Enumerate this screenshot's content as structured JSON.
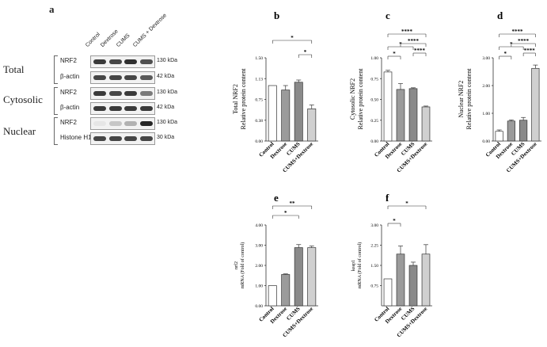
{
  "panel_letters": [
    "a",
    "b",
    "c",
    "d",
    "e",
    "f"
  ],
  "blot": {
    "lanes": [
      "Control",
      "Dextrose",
      "CUMS",
      "CUMS + Dextrose"
    ],
    "sections": [
      {
        "label": "Total",
        "rows": [
          {
            "name": "NRF2",
            "kda": "130 kDa",
            "intensity": [
              0.85,
              0.8,
              0.9,
              0.75
            ]
          },
          {
            "name": "β-actin",
            "kda": "42 kDa",
            "intensity": [
              0.8,
              0.8,
              0.8,
              0.7
            ]
          }
        ]
      },
      {
        "label": "Cytosolic",
        "rows": [
          {
            "name": "NRF2",
            "kda": "130 kDa",
            "intensity": [
              0.85,
              0.8,
              0.85,
              0.55
            ]
          },
          {
            "name": "β-actin",
            "kda": "42 kDa",
            "intensity": [
              0.85,
              0.85,
              0.85,
              0.85
            ]
          }
        ]
      },
      {
        "label": "Nuclear",
        "rows": [
          {
            "name": "NRF2",
            "kda": "130 kDa",
            "intensity": [
              0.05,
              0.2,
              0.3,
              0.95
            ]
          },
          {
            "name": "Histone H1",
            "kda": "30 kDa",
            "intensity": [
              0.8,
              0.8,
              0.8,
              0.8
            ]
          }
        ]
      }
    ]
  },
  "chart_data": [
    {
      "id": "b",
      "type": "bar",
      "ylabel": "Total NRF2\nRelative protein content",
      "categories": [
        "Control",
        "Dextrose",
        "CUMS",
        "CUMS+Dextrose"
      ],
      "values": [
        1.0,
        0.92,
        1.06,
        0.58
      ],
      "errors": [
        0.0,
        0.08,
        0.04,
        0.07
      ],
      "ylim": [
        0,
        1.5
      ],
      "ticks": [
        "0.00",
        "0.38",
        "0.75",
        "1.13",
        "1.50"
      ],
      "colors": [
        "#ffffff",
        "#9b9b9b",
        "#8a8a8a",
        "#d0d0d0"
      ],
      "sig": [
        {
          "from": 0,
          "to": 3,
          "label": "*"
        },
        {
          "from": 2,
          "to": 3,
          "label": "*"
        }
      ]
    },
    {
      "id": "c",
      "type": "bar",
      "ylabel": "Cytosolic NRF2\nRelative protein content",
      "categories": [
        "Control",
        "Dextrose",
        "CUMS",
        "CUMS+Dextrose"
      ],
      "values": [
        0.83,
        0.62,
        0.63,
        0.41
      ],
      "errors": [
        0.02,
        0.07,
        0.01,
        0.01
      ],
      "ylim": [
        0,
        1.0
      ],
      "ticks": [
        "0.00",
        "0.25",
        "0.50",
        "0.75",
        "1.00"
      ],
      "colors": [
        "#ffffff",
        "#9b9b9b",
        "#8a8a8a",
        "#d0d0d0"
      ],
      "sig": [
        {
          "from": 0,
          "to": 1,
          "label": "*"
        },
        {
          "from": 0,
          "to": 2,
          "label": "*"
        },
        {
          "from": 2,
          "to": 3,
          "label": "****"
        },
        {
          "from": 1,
          "to": 3,
          "label": "****"
        },
        {
          "from": 0,
          "to": 3,
          "label": "****"
        }
      ]
    },
    {
      "id": "d",
      "type": "bar",
      "ylabel": "Nuclear NRF2\nRelative protein content",
      "categories": [
        "Control",
        "Dextrose",
        "CUMS",
        "CUMS+Dextrose"
      ],
      "values": [
        0.35,
        0.72,
        0.75,
        2.62
      ],
      "errors": [
        0.05,
        0.04,
        0.1,
        0.12
      ],
      "ylim": [
        0,
        3.0
      ],
      "ticks": [
        "0.00",
        "1.00",
        "2.00",
        "3.00"
      ],
      "colors": [
        "#ffffff",
        "#9b9b9b",
        "#8a8a8a",
        "#d0d0d0"
      ],
      "sig": [
        {
          "from": 0,
          "to": 1,
          "label": "*"
        },
        {
          "from": 0,
          "to": 2,
          "label": "*"
        },
        {
          "from": 2,
          "to": 3,
          "label": "****"
        },
        {
          "from": 1,
          "to": 3,
          "label": "****"
        },
        {
          "from": 0,
          "to": 3,
          "label": "****"
        }
      ]
    },
    {
      "id": "e",
      "type": "bar",
      "ylabel": "nrf2\nmRNA (Fold of control)",
      "categories": [
        "Control",
        "Dextrose",
        "CUMS",
        "CUMS+Dextrose"
      ],
      "values": [
        1.0,
        1.55,
        2.88,
        2.88
      ],
      "errors": [
        0.0,
        0.03,
        0.15,
        0.08
      ],
      "ylim": [
        0,
        4.0
      ],
      "ticks": [
        "0.00",
        "1.00",
        "2.00",
        "3.00",
        "4.00"
      ],
      "colors": [
        "#ffffff",
        "#9b9b9b",
        "#8a8a8a",
        "#d0d0d0"
      ],
      "sig": [
        {
          "from": 0,
          "to": 2,
          "label": "*"
        },
        {
          "from": 0,
          "to": 3,
          "label": "**"
        }
      ]
    },
    {
      "id": "f",
      "type": "bar",
      "ylabel": "keap1\nmRNA (Fold of control)",
      "categories": [
        "Control",
        "Dextrose",
        "CUMS",
        "CUMS+Dextrose"
      ],
      "values": [
        1.0,
        1.92,
        1.5,
        1.92
      ],
      "errors": [
        0.0,
        0.3,
        0.12,
        0.35
      ],
      "ylim": [
        0,
        3.0
      ],
      "ticks": [
        "0.75",
        "1.50",
        "2.25",
        "3.00"
      ],
      "colors": [
        "#ffffff",
        "#9b9b9b",
        "#8a8a8a",
        "#d0d0d0"
      ],
      "sig": [
        {
          "from": 0,
          "to": 1,
          "label": "*"
        },
        {
          "from": 0,
          "to": 3,
          "label": "*"
        }
      ]
    }
  ]
}
